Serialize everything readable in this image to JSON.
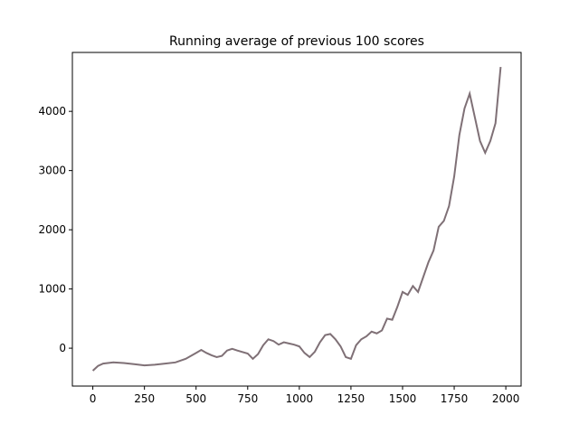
{
  "chart_data": {
    "type": "line",
    "title": "Running average of previous 100 scores",
    "x": [
      0,
      25,
      50,
      100,
      150,
      200,
      250,
      300,
      350,
      400,
      450,
      500,
      525,
      550,
      575,
      600,
      625,
      650,
      675,
      700,
      750,
      775,
      800,
      825,
      850,
      875,
      900,
      925,
      950,
      975,
      1000,
      1025,
      1050,
      1075,
      1100,
      1125,
      1150,
      1175,
      1200,
      1225,
      1250,
      1275,
      1300,
      1325,
      1350,
      1375,
      1400,
      1425,
      1450,
      1475,
      1500,
      1525,
      1550,
      1575,
      1600,
      1625,
      1650,
      1675,
      1700,
      1725,
      1750,
      1775,
      1800,
      1825,
      1850,
      1875,
      1900,
      1925,
      1950,
      1975
    ],
    "series": [
      {
        "color": "#7f7076",
        "values": [
          -380,
          -300,
          -260,
          -240,
          -250,
          -270,
          -290,
          -280,
          -260,
          -240,
          -180,
          -80,
          -30,
          -80,
          -120,
          -150,
          -130,
          -40,
          -10,
          -40,
          -90,
          -180,
          -100,
          50,
          150,
          120,
          60,
          100,
          80,
          60,
          30,
          -80,
          -150,
          -60,
          100,
          220,
          240,
          150,
          30,
          -150,
          -180,
          50,
          150,
          200,
          280,
          250,
          300,
          500,
          480,
          700,
          950,
          900,
          1050,
          950,
          1200,
          1450,
          1650,
          2050,
          2150,
          2400,
          2900,
          3600,
          4050,
          4300,
          3900,
          3500,
          3300,
          3500,
          3800,
          4750
        ]
      }
    ],
    "xlim": [
      -99,
      2074
    ],
    "ylim": [
      -640,
      4995
    ],
    "xticks": [
      0,
      250,
      500,
      750,
      1000,
      1250,
      1500,
      1750,
      2000
    ],
    "yticks": [
      0,
      1000,
      2000,
      3000,
      4000
    ]
  }
}
